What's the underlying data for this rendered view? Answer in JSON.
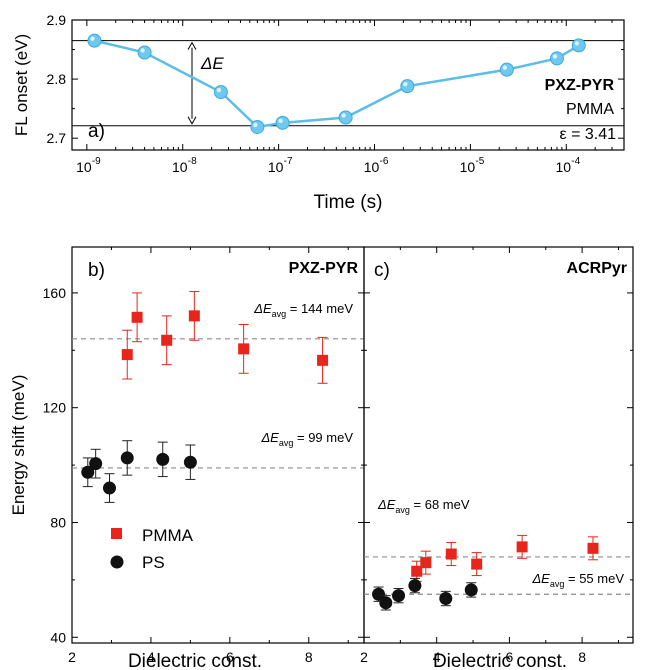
{
  "colors": {
    "line_a": "#5bbde8",
    "marker_a": "#6ec8f0",
    "pmma": "#e8251c",
    "pmma_bar": "#e8251c",
    "ps": "#111111",
    "avg_line": "#8c8c8c"
  },
  "chart_data": [
    {
      "id": "a",
      "type": "line",
      "panel_label": "a)",
      "xlabel": "Time (s)",
      "ylabel": "FL onset (eV)",
      "x_scale": "log",
      "xlim": [
        7e-10,
        0.0004
      ],
      "ylim": [
        2.68,
        2.9
      ],
      "yticks": [
        "2.7",
        "2.8",
        "2.9"
      ],
      "xtick_bases": [
        "10",
        "10",
        "10",
        "10",
        "10",
        "10"
      ],
      "xtick_exps": [
        "-9",
        "-8",
        "-7",
        "-6",
        "-5",
        "-4"
      ],
      "annotations": {
        "delta": "ΔE",
        "line1": "PXZ-PYR",
        "line2": "PMMA",
        "line3": "ε = 3.41"
      },
      "reference_lines_y": [
        2.865,
        2.721
      ],
      "series": [
        {
          "x": [
            1.2e-09,
            4e-09,
            2.5e-08,
            6e-08,
            1.1e-07,
            5e-07,
            2.2e-06,
            2.4e-05,
            8e-05,
            0.000135
          ],
          "y": [
            2.865,
            2.845,
            2.778,
            2.719,
            2.726,
            2.735,
            2.788,
            2.816,
            2.835,
            2.857
          ]
        }
      ]
    },
    {
      "id": "b",
      "type": "scatter",
      "panel_label": "b)",
      "title": "PXZ-PYR",
      "ylabel": "Energy shift (meV)",
      "xlabel": "Dielectric const.",
      "xlim": [
        2,
        9.4
      ],
      "ylim": [
        38,
        176
      ],
      "xticks": [
        "2",
        "4",
        "6",
        "8"
      ],
      "yticks": [
        "40",
        "80",
        "120",
        "160"
      ],
      "avg_labels": [
        {
          "prefix": "ΔE",
          "sub": "avg",
          "suffix": " = 144 meV",
          "y": 144
        },
        {
          "prefix": "ΔE",
          "sub": "avg",
          "suffix": " = 99 meV",
          "y": 99
        }
      ],
      "legend": {
        "pmma": "PMMA",
        "ps": "PS"
      },
      "series": [
        {
          "name": "PMMA",
          "marker": "square",
          "x": [
            3.4,
            3.65,
            4.4,
            5.1,
            6.35,
            8.35
          ],
          "y": [
            138.5,
            151.5,
            143.5,
            152,
            140.5,
            136.5
          ],
          "err": [
            8.5,
            8.5,
            8.5,
            8.5,
            8.5,
            8
          ]
        },
        {
          "name": "PS",
          "marker": "circle",
          "x": [
            2.4,
            2.6,
            2.95,
            3.4,
            4.3,
            5.0
          ],
          "y": [
            97.5,
            100.5,
            92,
            102.5,
            102,
            101
          ],
          "err": [
            5,
            5,
            5,
            6,
            6,
            6
          ]
        }
      ]
    },
    {
      "id": "c",
      "type": "scatter",
      "panel_label": "c)",
      "title": "ACRPyr",
      "xlabel": "Dielectric const.",
      "xlim": [
        2,
        9.4
      ],
      "ylim": [
        38,
        176
      ],
      "xticks": [
        "2",
        "4",
        "6",
        "8"
      ],
      "avg_labels": [
        {
          "prefix": "ΔE",
          "sub": "avg",
          "suffix": " = 68 meV",
          "y": 68
        },
        {
          "prefix": "ΔE",
          "sub": "avg",
          "suffix": " = 55 meV",
          "y": 55
        }
      ],
      "series": [
        {
          "name": "PMMA",
          "marker": "square",
          "x": [
            3.45,
            3.7,
            4.4,
            5.1,
            6.35,
            8.3
          ],
          "y": [
            63,
            66,
            69,
            65.5,
            71.5,
            71
          ],
          "err": [
            3.5,
            4,
            4,
            4,
            4,
            4
          ]
        },
        {
          "name": "PS",
          "marker": "circle",
          "x": [
            2.4,
            2.6,
            2.95,
            3.4,
            4.25,
            4.95
          ],
          "y": [
            55,
            52,
            54.5,
            58,
            53.5,
            56.5
          ],
          "err": [
            2.5,
            2.5,
            2.5,
            2.5,
            2.5,
            2.5
          ]
        }
      ]
    }
  ]
}
